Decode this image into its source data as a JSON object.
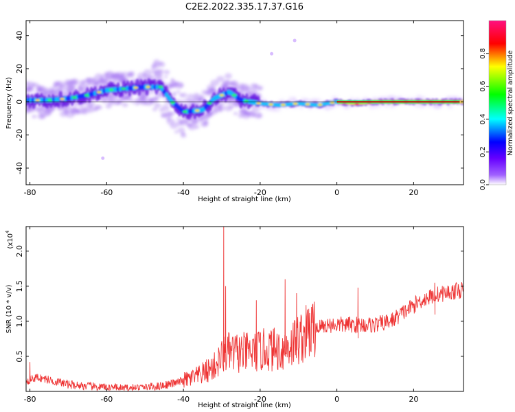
{
  "title": "C2E2.2022.335.17.37.G16",
  "chart_data": [
    {
      "type": "heatmap",
      "xlabel": "Height of straight line (km)",
      "ylabel": "Frequency (Hz)",
      "xlim": [
        -81,
        33
      ],
      "ylim": [
        -50,
        49
      ],
      "xticks": [
        -80,
        -60,
        -40,
        -20,
        0,
        20
      ],
      "yticks": [
        -40,
        -20,
        0,
        20,
        40
      ],
      "colorbar": {
        "label": "Normalized spectral amplitude",
        "range": [
          0,
          1
        ],
        "ticks": [
          0.0,
          0.2,
          0.4,
          0.6,
          0.8
        ],
        "colormap": [
          "#ffffff",
          "#8800ff",
          "#0000ff",
          "#00ffff",
          "#00ff00",
          "#ffff00",
          "#ff0000",
          "#ff0080"
        ]
      },
      "centerline": [
        {
          "x": -80,
          "y": 1
        },
        {
          "x": -75,
          "y": 1
        },
        {
          "x": -70,
          "y": 2
        },
        {
          "x": -65,
          "y": 4
        },
        {
          "x": -60,
          "y": 7
        },
        {
          "x": -55,
          "y": 8
        },
        {
          "x": -50,
          "y": 9
        },
        {
          "x": -46,
          "y": 9
        },
        {
          "x": -43,
          "y": 0
        },
        {
          "x": -40,
          "y": -6
        },
        {
          "x": -35,
          "y": -5
        },
        {
          "x": -32,
          "y": 2
        },
        {
          "x": -28,
          "y": 6
        },
        {
          "x": -25,
          "y": 1
        },
        {
          "x": -20,
          "y": -1
        },
        {
          "x": -15,
          "y": -2
        },
        {
          "x": -10,
          "y": -1
        },
        {
          "x": -5,
          "y": -2
        },
        {
          "x": 0,
          "y": 0
        },
        {
          "x": 5,
          "y": -1
        },
        {
          "x": 10,
          "y": 0
        },
        {
          "x": 20,
          "y": 0
        },
        {
          "x": 32,
          "y": 0
        }
      ],
      "outliers": [
        {
          "x": -17,
          "y": 29
        },
        {
          "x": -11,
          "y": 37
        },
        {
          "x": -61,
          "y": -34
        }
      ]
    },
    {
      "type": "line",
      "xlabel": "Height of straight line (km)",
      "ylabel": "SNR (10 * v/v)",
      "yscale_label": "(x10",
      "yscale_exponent": "4",
      "xlim": [
        -81,
        33
      ],
      "ylim": [
        0,
        2.35
      ],
      "xticks": [
        -80,
        -60,
        -40,
        -20,
        0,
        20
      ],
      "yticks": [
        0.5,
        1.0,
        1.5,
        2.0
      ],
      "line_color": "#ee3333",
      "trend": [
        {
          "x": -81,
          "y": 0.15
        },
        {
          "x": -78,
          "y": 0.2
        },
        {
          "x": -70,
          "y": 0.1
        },
        {
          "x": -62,
          "y": 0.06
        },
        {
          "x": -55,
          "y": 0.04
        },
        {
          "x": -47,
          "y": 0.07
        },
        {
          "x": -42,
          "y": 0.12
        },
        {
          "x": -36,
          "y": 0.22
        },
        {
          "x": -32,
          "y": 0.35
        },
        {
          "x": -29,
          "y": 0.55
        },
        {
          "x": -26,
          "y": 0.55
        },
        {
          "x": -22,
          "y": 0.55
        },
        {
          "x": -18,
          "y": 0.6
        },
        {
          "x": -14,
          "y": 0.6
        },
        {
          "x": -10,
          "y": 0.75
        },
        {
          "x": -6,
          "y": 0.9
        },
        {
          "x": -2,
          "y": 0.95
        },
        {
          "x": 2,
          "y": 0.95
        },
        {
          "x": 6,
          "y": 0.95
        },
        {
          "x": 10,
          "y": 0.95
        },
        {
          "x": 14,
          "y": 1.0
        },
        {
          "x": 18,
          "y": 1.15
        },
        {
          "x": 22,
          "y": 1.3
        },
        {
          "x": 26,
          "y": 1.38
        },
        {
          "x": 30,
          "y": 1.42
        },
        {
          "x": 33,
          "y": 1.45
        }
      ],
      "spikes": [
        {
          "x": -29.5,
          "y": 2.35
        },
        {
          "x": -29,
          "y": 1.5
        },
        {
          "x": -13.5,
          "y": 1.6
        },
        {
          "x": -21,
          "y": 1.3
        },
        {
          "x": -10.5,
          "y": 1.4
        },
        {
          "x": 5.5,
          "y": 1.48
        },
        {
          "x": 25.5,
          "y": 1.55
        },
        {
          "x": -80,
          "y": 0.42
        }
      ]
    }
  ]
}
